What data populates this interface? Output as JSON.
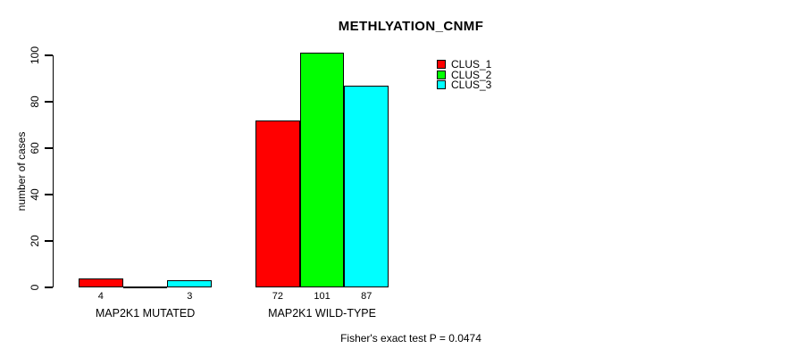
{
  "window": {
    "background": "#ffffff"
  },
  "chart_data": {
    "type": "bar",
    "title": "METHLYATION_CNMF",
    "xlabel": "",
    "ylabel": "number of cases",
    "categories": [
      "MAP2K1 MUTATED",
      "MAP2K1 WILD-TYPE"
    ],
    "series": [
      {
        "name": "CLUS_1",
        "color": "#ff0000",
        "values": [
          4,
          72
        ]
      },
      {
        "name": "CLUS_2",
        "color": "#00ff00",
        "values": [
          0,
          101
        ]
      },
      {
        "name": "CLUS_3",
        "color": "#00ffff",
        "values": [
          3,
          87
        ]
      }
    ],
    "value_labels": [
      [
        "4",
        "",
        "3"
      ],
      [
        "72",
        "101",
        "87"
      ]
    ],
    "ylim": [
      0,
      100
    ],
    "yticks": [
      0,
      20,
      40,
      60,
      80,
      100
    ],
    "grid": false,
    "legend_position": "top-right",
    "legend_entries": [
      "CLUS_1",
      "CLUS_2",
      "CLUS_3"
    ],
    "annotation": "Fisher's exact test P = 0.0474",
    "axis_color": "#000000",
    "bar_border_color": "#000000"
  }
}
